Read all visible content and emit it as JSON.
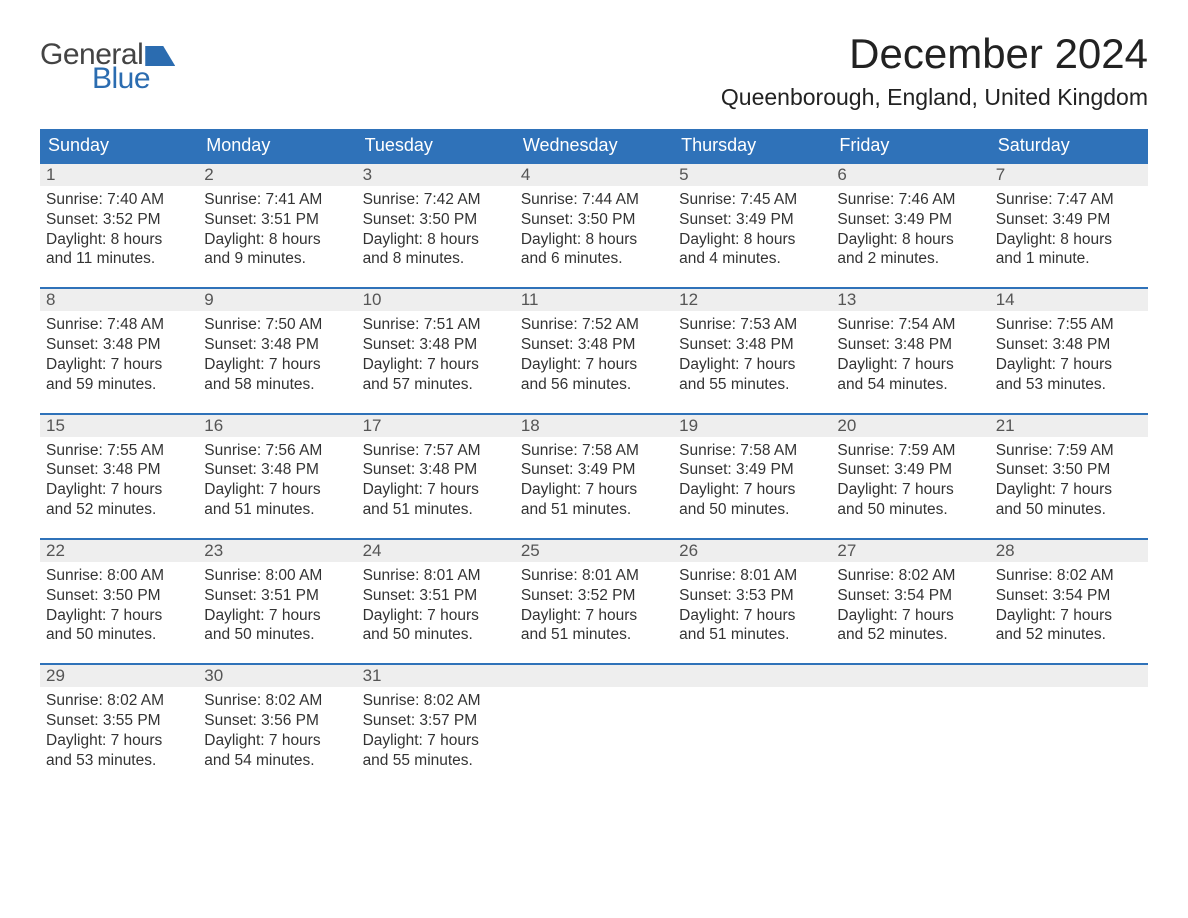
{
  "brand": {
    "word1": "General",
    "word2": "Blue"
  },
  "title": "December 2024",
  "location": "Queenborough, England, United Kingdom",
  "colors": {
    "header_bg": "#2f72b9",
    "header_text": "#ffffff",
    "daynum_bg": "#eeeeee",
    "daynum_border": "#2f72b9",
    "body_text": "#333333",
    "logo_blue": "#2b6cb0",
    "page_bg": "#ffffff"
  },
  "weekdays": [
    "Sunday",
    "Monday",
    "Tuesday",
    "Wednesday",
    "Thursday",
    "Friday",
    "Saturday"
  ],
  "weeks": [
    [
      {
        "n": "1",
        "sr": "7:40 AM",
        "ss": "3:52 PM",
        "dl": "8 hours and 11 minutes."
      },
      {
        "n": "2",
        "sr": "7:41 AM",
        "ss": "3:51 PM",
        "dl": "8 hours and 9 minutes."
      },
      {
        "n": "3",
        "sr": "7:42 AM",
        "ss": "3:50 PM",
        "dl": "8 hours and 8 minutes."
      },
      {
        "n": "4",
        "sr": "7:44 AM",
        "ss": "3:50 PM",
        "dl": "8 hours and 6 minutes."
      },
      {
        "n": "5",
        "sr": "7:45 AM",
        "ss": "3:49 PM",
        "dl": "8 hours and 4 minutes."
      },
      {
        "n": "6",
        "sr": "7:46 AM",
        "ss": "3:49 PM",
        "dl": "8 hours and 2 minutes."
      },
      {
        "n": "7",
        "sr": "7:47 AM",
        "ss": "3:49 PM",
        "dl": "8 hours and 1 minute."
      }
    ],
    [
      {
        "n": "8",
        "sr": "7:48 AM",
        "ss": "3:48 PM",
        "dl": "7 hours and 59 minutes."
      },
      {
        "n": "9",
        "sr": "7:50 AM",
        "ss": "3:48 PM",
        "dl": "7 hours and 58 minutes."
      },
      {
        "n": "10",
        "sr": "7:51 AM",
        "ss": "3:48 PM",
        "dl": "7 hours and 57 minutes."
      },
      {
        "n": "11",
        "sr": "7:52 AM",
        "ss": "3:48 PM",
        "dl": "7 hours and 56 minutes."
      },
      {
        "n": "12",
        "sr": "7:53 AM",
        "ss": "3:48 PM",
        "dl": "7 hours and 55 minutes."
      },
      {
        "n": "13",
        "sr": "7:54 AM",
        "ss": "3:48 PM",
        "dl": "7 hours and 54 minutes."
      },
      {
        "n": "14",
        "sr": "7:55 AM",
        "ss": "3:48 PM",
        "dl": "7 hours and 53 minutes."
      }
    ],
    [
      {
        "n": "15",
        "sr": "7:55 AM",
        "ss": "3:48 PM",
        "dl": "7 hours and 52 minutes."
      },
      {
        "n": "16",
        "sr": "7:56 AM",
        "ss": "3:48 PM",
        "dl": "7 hours and 51 minutes."
      },
      {
        "n": "17",
        "sr": "7:57 AM",
        "ss": "3:48 PM",
        "dl": "7 hours and 51 minutes."
      },
      {
        "n": "18",
        "sr": "7:58 AM",
        "ss": "3:49 PM",
        "dl": "7 hours and 51 minutes."
      },
      {
        "n": "19",
        "sr": "7:58 AM",
        "ss": "3:49 PM",
        "dl": "7 hours and 50 minutes."
      },
      {
        "n": "20",
        "sr": "7:59 AM",
        "ss": "3:49 PM",
        "dl": "7 hours and 50 minutes."
      },
      {
        "n": "21",
        "sr": "7:59 AM",
        "ss": "3:50 PM",
        "dl": "7 hours and 50 minutes."
      }
    ],
    [
      {
        "n": "22",
        "sr": "8:00 AM",
        "ss": "3:50 PM",
        "dl": "7 hours and 50 minutes."
      },
      {
        "n": "23",
        "sr": "8:00 AM",
        "ss": "3:51 PM",
        "dl": "7 hours and 50 minutes."
      },
      {
        "n": "24",
        "sr": "8:01 AM",
        "ss": "3:51 PM",
        "dl": "7 hours and 50 minutes."
      },
      {
        "n": "25",
        "sr": "8:01 AM",
        "ss": "3:52 PM",
        "dl": "7 hours and 51 minutes."
      },
      {
        "n": "26",
        "sr": "8:01 AM",
        "ss": "3:53 PM",
        "dl": "7 hours and 51 minutes."
      },
      {
        "n": "27",
        "sr": "8:02 AM",
        "ss": "3:54 PM",
        "dl": "7 hours and 52 minutes."
      },
      {
        "n": "28",
        "sr": "8:02 AM",
        "ss": "3:54 PM",
        "dl": "7 hours and 52 minutes."
      }
    ],
    [
      {
        "n": "29",
        "sr": "8:02 AM",
        "ss": "3:55 PM",
        "dl": "7 hours and 53 minutes."
      },
      {
        "n": "30",
        "sr": "8:02 AM",
        "ss": "3:56 PM",
        "dl": "7 hours and 54 minutes."
      },
      {
        "n": "31",
        "sr": "8:02 AM",
        "ss": "3:57 PM",
        "dl": "7 hours and 55 minutes."
      },
      null,
      null,
      null,
      null
    ]
  ],
  "labels": {
    "sunrise": "Sunrise: ",
    "sunset": "Sunset: ",
    "daylight": "Daylight: "
  }
}
